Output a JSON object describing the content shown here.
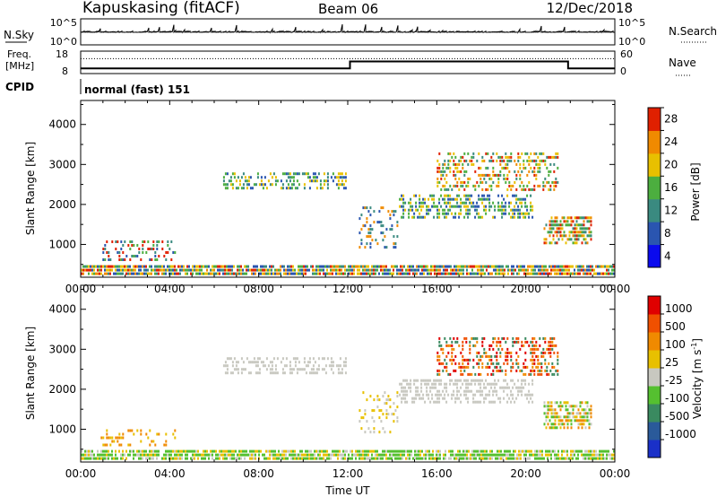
{
  "header": {
    "station": "Kapuskasing (fitACF)",
    "beam": "Beam 06",
    "date": "12/Dec/2018"
  },
  "top_panels": {
    "nsky_label": "N.Sky",
    "nsky_tick_top": "10^5",
    "nsky_tick_bottom": "10^0",
    "nsearch_label": "N.Search",
    "nsearch_tick_top": "10^5",
    "nsearch_tick_bottom": "10^0",
    "freq_label": "Freq.",
    "freq_unit": "[MHz]",
    "freq_tick_top": "18",
    "freq_tick_bottom": "8",
    "nave_label": "Nave",
    "nave_tick_top": "60",
    "nave_tick_bottom": "0",
    "cpid_label": "CPID",
    "cpid_value": "normal (fast) 151",
    "freq_steps": [
      {
        "start_hour": 0,
        "end_hour": 12.1,
        "freq_mhz": 10.3
      },
      {
        "start_hour": 12.1,
        "end_hour": 21.9,
        "freq_mhz": 13.4
      },
      {
        "start_hour": 21.9,
        "end_hour": 24,
        "freq_mhz": 10.3
      }
    ],
    "nave_dotted_level": 40
  },
  "chart_data": [
    {
      "type": "heatmap",
      "panel": "power",
      "ylabel": "Slant Range [km]",
      "xlabel": "",
      "x_ticks": [
        "00:00",
        "04:00",
        "08:00",
        "12:00",
        "16:00",
        "20:00",
        "00:00"
      ],
      "y_ticks": [
        "1000",
        "2000",
        "3000",
        "4000"
      ],
      "xlim_hours": [
        0,
        24
      ],
      "ylim_km": [
        180,
        4600
      ],
      "colorbar_label": "Power [dB]",
      "colorbar_ticks": [
        "4",
        "8",
        "12",
        "16",
        "20",
        "24",
        "28"
      ],
      "colorbar_colors": [
        "#0a0aee",
        "#2a55b0",
        "#3a8a80",
        "#4cae3f",
        "#e8c000",
        "#f08a00",
        "#e02000"
      ],
      "scatter_regions": [
        {
          "t0": 0.0,
          "t1": 24.0,
          "r0": 200,
          "r1": 480,
          "density": 0.85,
          "colors": [
            "#2a55b0",
            "#3a8a80",
            "#4cae3f",
            "#e8c000",
            "#f08a00",
            "#e02000"
          ]
        },
        {
          "t0": 0.9,
          "t1": 4.3,
          "r0": 500,
          "r1": 1100,
          "density": 0.35,
          "colors": [
            "#2a55b0",
            "#3a8a80",
            "#4cae3f",
            "#e02000"
          ]
        },
        {
          "t0": 6.4,
          "t1": 12.0,
          "r0": 2350,
          "r1": 2800,
          "density": 0.45,
          "colors": [
            "#2a55b0",
            "#3a8a80",
            "#4cae3f",
            "#e8c000"
          ]
        },
        {
          "t0": 12.5,
          "t1": 14.3,
          "r0": 850,
          "r1": 1950,
          "density": 0.25,
          "colors": [
            "#2a55b0",
            "#3a8a80",
            "#f08a00"
          ]
        },
        {
          "t0": 14.3,
          "t1": 20.4,
          "r0": 1550,
          "r1": 2250,
          "density": 0.5,
          "colors": [
            "#2a55b0",
            "#3a8a80",
            "#4cae3f",
            "#e8c000"
          ]
        },
        {
          "t0": 16.0,
          "t1": 21.5,
          "r0": 2300,
          "r1": 3300,
          "density": 0.4,
          "colors": [
            "#3a8a80",
            "#4cae3f",
            "#e8c000",
            "#f08a00",
            "#e02000"
          ]
        },
        {
          "t0": 20.8,
          "t1": 23.0,
          "r0": 950,
          "r1": 1700,
          "density": 0.6,
          "colors": [
            "#3a8a80",
            "#4cae3f",
            "#e8c000",
            "#f08a00",
            "#e02000"
          ]
        }
      ]
    },
    {
      "type": "heatmap",
      "panel": "velocity",
      "ylabel": "Slant Range [km]",
      "xlabel": "Time UT",
      "x_ticks": [
        "00:00",
        "04:00",
        "08:00",
        "12:00",
        "16:00",
        "20:00",
        "00:00"
      ],
      "y_ticks": [
        "1000",
        "2000",
        "3000",
        "4000"
      ],
      "xlim_hours": [
        0,
        24
      ],
      "ylim_km": [
        180,
        4600
      ],
      "colorbar_label": "Velocity [m s-1]",
      "colorbar_ticks": [
        "1000",
        "500",
        "100",
        "25",
        "-25",
        "-100",
        "-500",
        "-1000"
      ],
      "colorbar_colors": [
        "#1a30c8",
        "#2a5a9a",
        "#3a8a60",
        "#55c030",
        "#c8c8c0",
        "#e8c000",
        "#f08a00",
        "#f05000",
        "#e00000"
      ],
      "scatter_regions": [
        {
          "t0": 0.0,
          "t1": 24.0,
          "r0": 200,
          "r1": 480,
          "density": 0.8,
          "colors": [
            "#55c030",
            "#55c030",
            "#c8c8c0",
            "#e8c000"
          ]
        },
        {
          "t0": 0.9,
          "t1": 4.3,
          "r0": 500,
          "r1": 1000,
          "density": 0.3,
          "colors": [
            "#e8c000",
            "#f08a00"
          ]
        },
        {
          "t0": 6.4,
          "t1": 12.0,
          "r0": 2350,
          "r1": 2800,
          "density": 0.45,
          "colors": [
            "#c8c8c0"
          ]
        },
        {
          "t0": 12.5,
          "t1": 14.3,
          "r0": 850,
          "r1": 1950,
          "density": 0.25,
          "colors": [
            "#c8c8c0",
            "#e8c000"
          ]
        },
        {
          "t0": 14.3,
          "t1": 20.4,
          "r0": 1550,
          "r1": 2250,
          "density": 0.5,
          "colors": [
            "#c8c8c0"
          ]
        },
        {
          "t0": 16.0,
          "t1": 21.5,
          "r0": 2300,
          "r1": 3300,
          "density": 0.4,
          "colors": [
            "#3a8a60",
            "#f08a00",
            "#f05000",
            "#e00000"
          ]
        },
        {
          "t0": 20.8,
          "t1": 23.0,
          "r0": 950,
          "r1": 1700,
          "density": 0.6,
          "colors": [
            "#e8c000",
            "#f08a00",
            "#c8c8c0",
            "#55c030"
          ]
        }
      ]
    }
  ]
}
